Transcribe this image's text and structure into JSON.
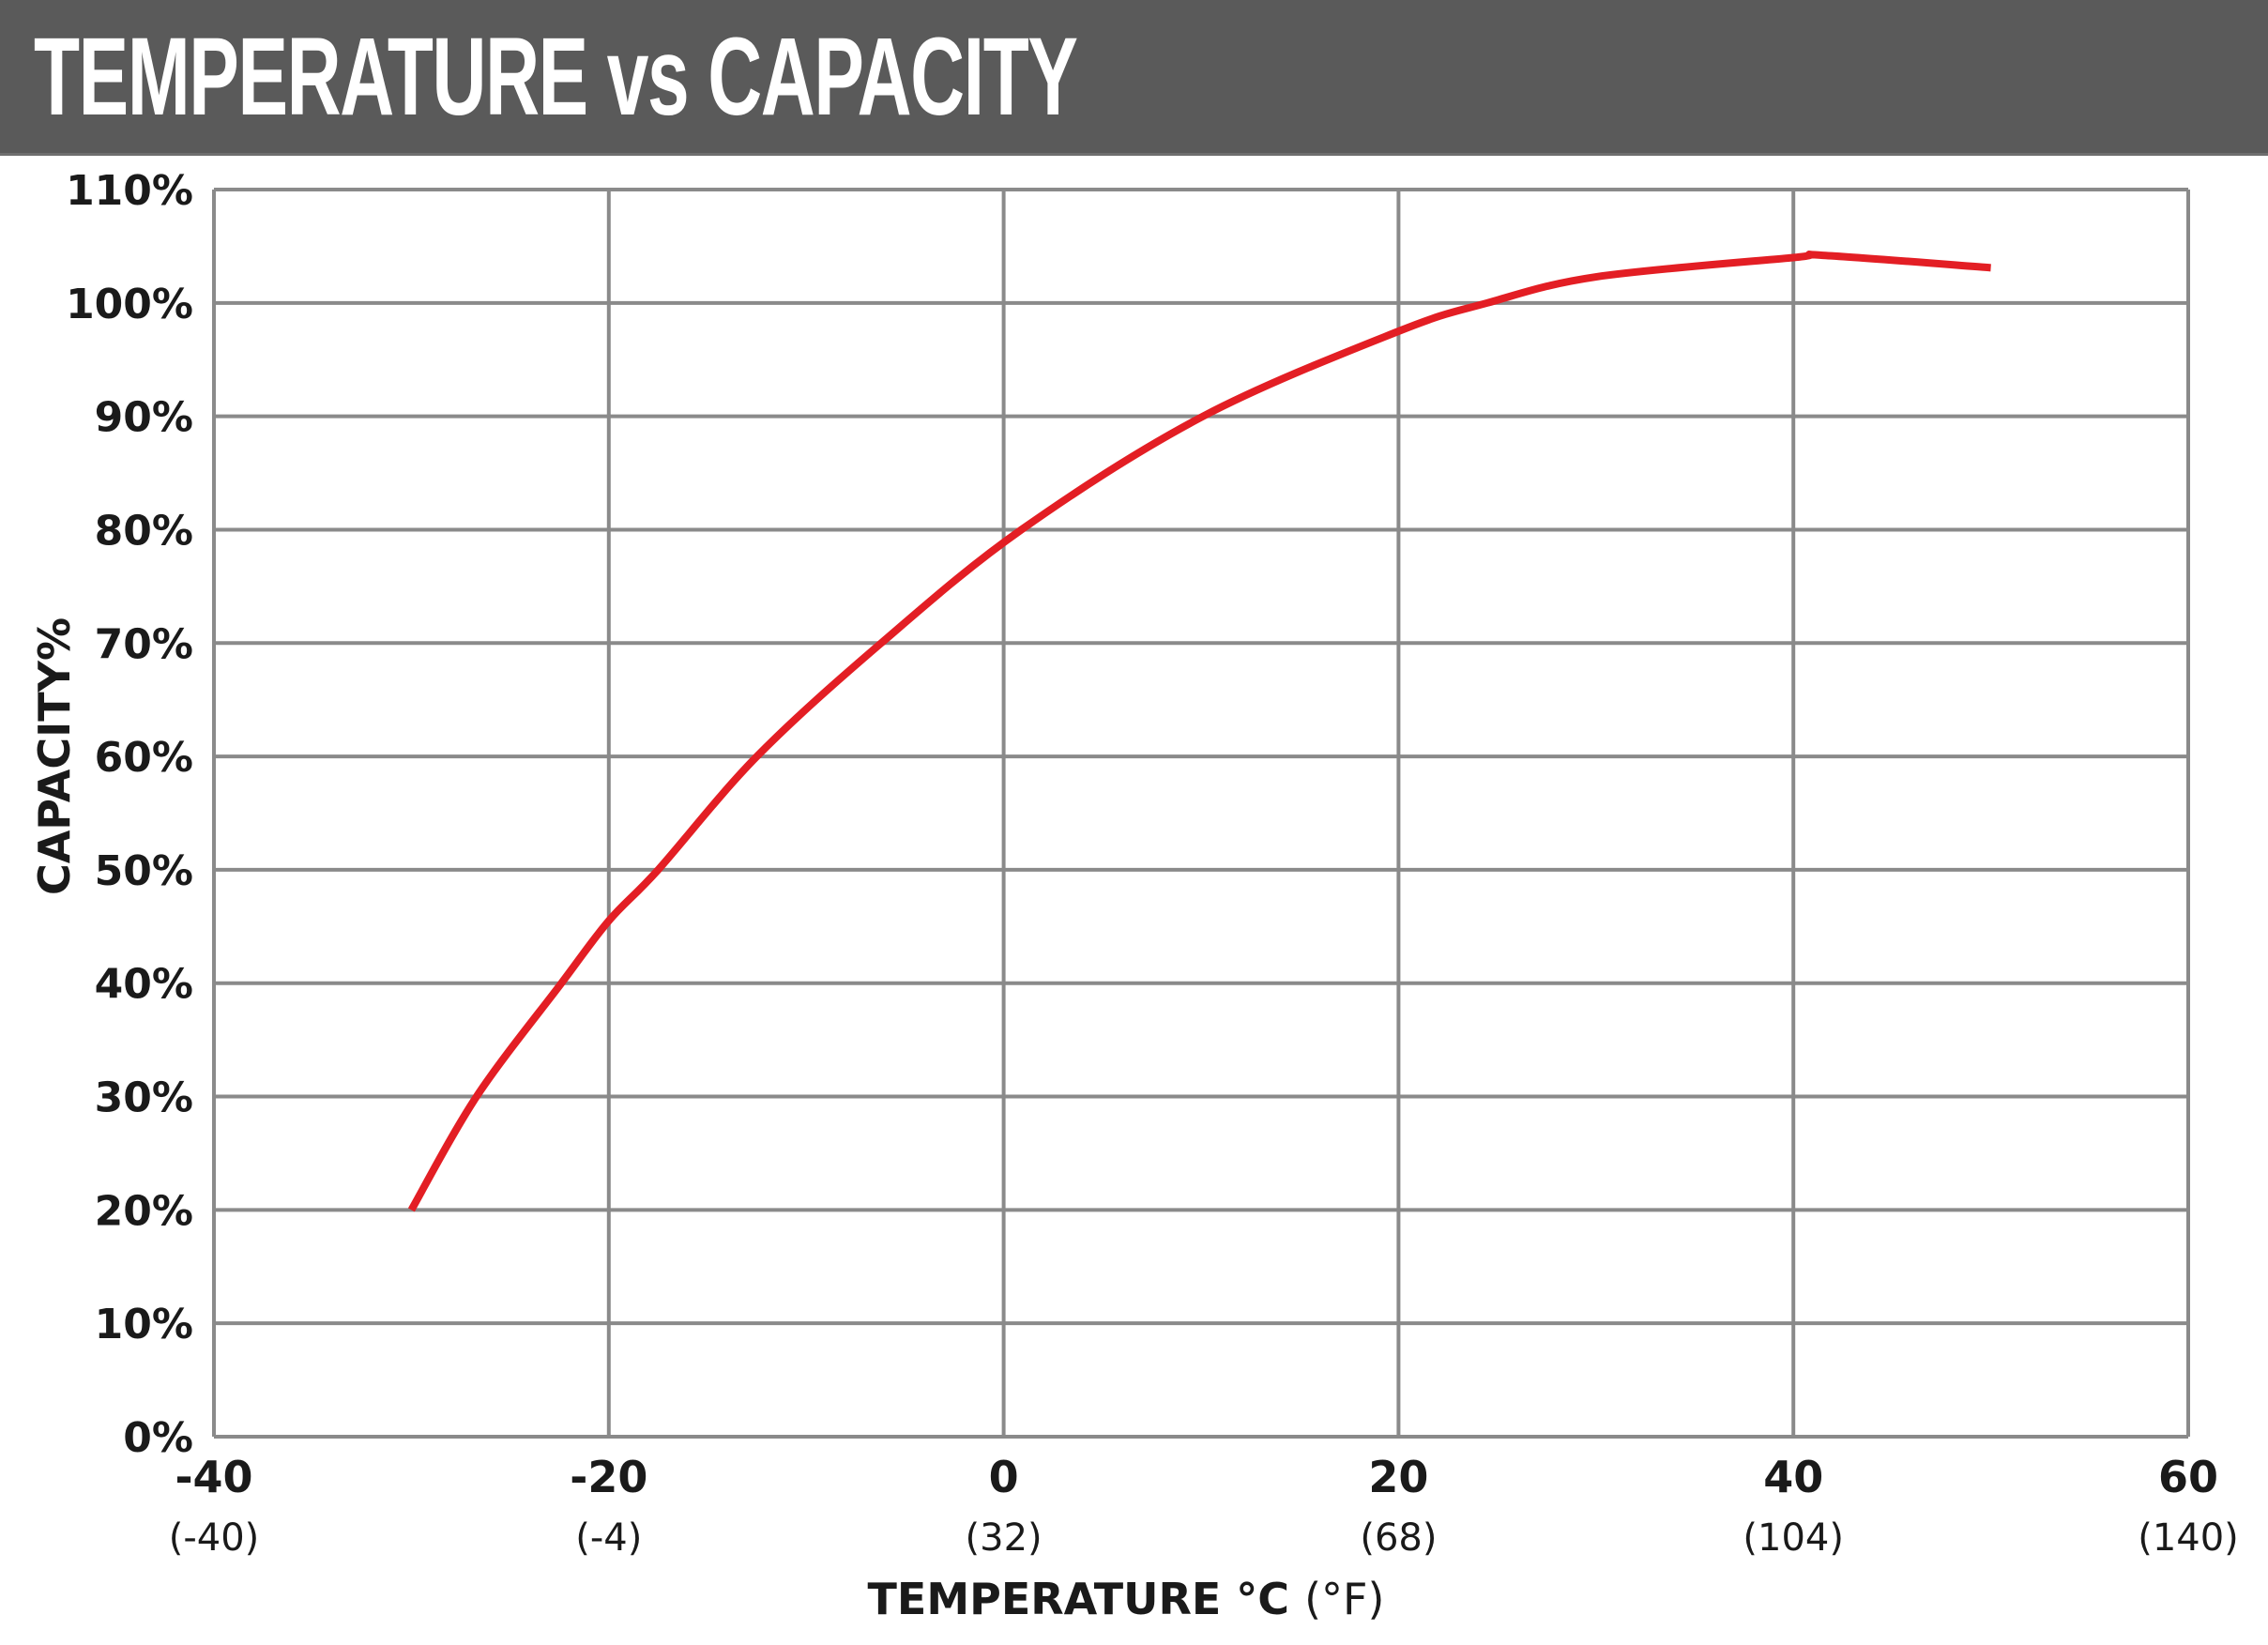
{
  "chart_data": {
    "type": "line",
    "title": "TEMPERATURE vs CAPACITY",
    "xlabel": "TEMPERATURE °C",
    "xlabel_secondary": "(°F)",
    "ylabel": "CAPACITY%",
    "xlim": [
      -40,
      60
    ],
    "ylim": [
      0,
      110
    ],
    "grid": true,
    "x_ticks": [
      -40,
      -20,
      0,
      20,
      40,
      60
    ],
    "x_tick_labels": [
      "-40",
      "-20",
      "0",
      "20",
      "40",
      "60"
    ],
    "x_tick_labels_secondary": [
      "(-40)",
      "(-4)",
      "(32)",
      "(68)",
      "(104)",
      "(140)"
    ],
    "y_ticks": [
      0,
      10,
      20,
      30,
      40,
      50,
      60,
      70,
      80,
      90,
      100,
      110
    ],
    "y_tick_labels": [
      "0%",
      "10%",
      "20%",
      "30%",
      "40%",
      "50%",
      "60%",
      "70%",
      "80%",
      "90%",
      "100%",
      "110%"
    ],
    "series": [
      {
        "color": "#e31e24",
        "x": [
          -30,
          -26.7,
          -22.4,
          -20,
          -17.5,
          -12.5,
          -6.2,
          0.9,
          10.1,
          20,
          24.5,
          30,
          40,
          41.5,
          50
        ],
        "y": [
          20,
          30,
          40,
          45.5,
          50,
          60,
          70,
          80,
          90,
          97.5,
          100,
          102.3,
          104.0,
          104.2,
          103.1
        ]
      }
    ]
  },
  "colors": {
    "header_bg": "#5a5a5a",
    "grid": "#8a8a8a",
    "line": "#e31e24"
  }
}
